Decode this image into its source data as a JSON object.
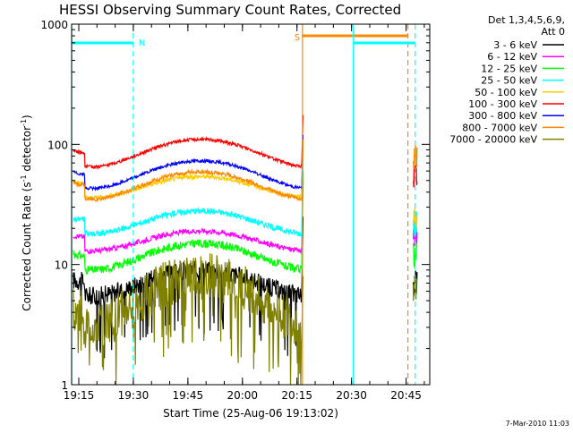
{
  "chart_data": {
    "type": "line",
    "title": "HESSI Observing Summary Count Rates, Corrected",
    "xlabel": "Start Time (25-Aug-06 19:13:02)",
    "ylabel_main": "Corrected Count Rate (s",
    "ylabel_sup1": "-1",
    "ylabel_mid": " detector",
    "ylabel_sup2": "-1",
    "ylabel_end": ")",
    "footer": "7-Mar-2010 11:03",
    "y_scale": "log",
    "ylim": [
      1,
      1000
    ],
    "xlim": [
      "19:13:02",
      "20:51:30"
    ],
    "x_ticks": [
      "19:15",
      "19:30",
      "19:45",
      "20:00",
      "20:15",
      "20:30",
      "20:45"
    ],
    "y_ticks": [
      "1",
      "10",
      "100",
      "1000"
    ],
    "legend_title": [
      "Det 1,3,4,5,6,9,",
      "Att 0"
    ],
    "legend_position": "right",
    "series": [
      {
        "name": "3 - 6 keV",
        "color": "#000000",
        "base": 5.5,
        "amp": 3.5,
        "noise": 0.18,
        "spike": 25,
        "post": 7
      },
      {
        "name": "6 - 12 keV",
        "color": "#ff00ff",
        "base": 13,
        "amp": 6,
        "noise": 0.05,
        "spike": 50,
        "post": 18
      },
      {
        "name": "12 - 25 keV",
        "color": "#00ff00",
        "base": 9,
        "amp": 6,
        "noise": 0.08,
        "spike": 60,
        "post": 12
      },
      {
        "name": "25 - 50 keV",
        "color": "#00ffff",
        "base": 18,
        "amp": 10,
        "noise": 0.06,
        "spike": 80,
        "post": 22
      },
      {
        "name": "50 - 100 keV",
        "color": "#ffcc00",
        "base": 36,
        "amp": 18,
        "noise": 0.04,
        "spike": 100,
        "post": 24
      },
      {
        "name": "100 - 300 keV",
        "color": "#ff0000",
        "base": 65,
        "amp": 45,
        "noise": 0.03,
        "spike": 175,
        "post": 55
      },
      {
        "name": "300 - 800 keV",
        "color": "#0000ff",
        "base": 43,
        "amp": 30,
        "noise": 0.03,
        "spike": 120,
        "post": 0
      },
      {
        "name": "800 - 7000 keV",
        "color": "#ff8800",
        "base": 35,
        "amp": 24,
        "noise": 0.04,
        "spike": 110,
        "post": 80
      },
      {
        "name": "7000 - 20000 keV",
        "color": "#808000",
        "base": 3,
        "amp": 5,
        "noise": 0.45,
        "spike": 8,
        "post": 6
      }
    ],
    "annotations": [
      {
        "label": "N",
        "start": "19:13:02",
        "end": "19:30:00",
        "color": "#00ffff"
      },
      {
        "label": "S",
        "start": "20:16:30",
        "end": "20:45:30",
        "color": "#ff8800"
      },
      {
        "label": "",
        "start": "20:30:30",
        "end": "20:47:30",
        "color": "#00ffff"
      }
    ]
  }
}
